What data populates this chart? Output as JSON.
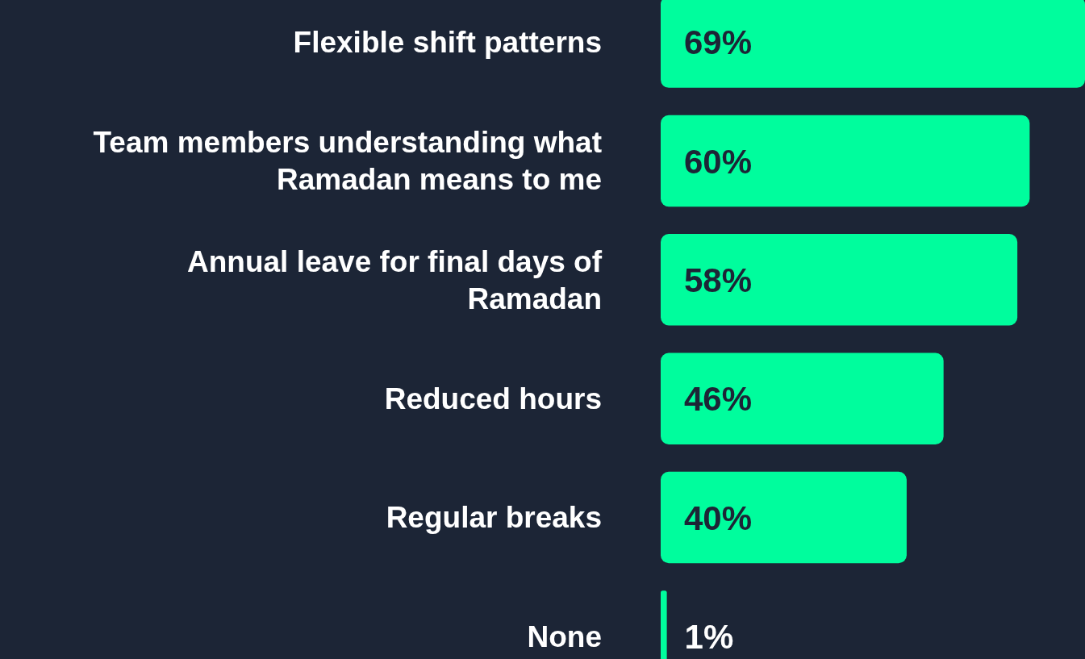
{
  "chart_data": {
    "type": "bar",
    "orientation": "horizontal",
    "categories": [
      "Flexible shift patterns",
      "Team members understanding what Ramadan means to me",
      "Annual leave for final days of Ramadan",
      "Reduced hours",
      "Regular breaks",
      "None"
    ],
    "values": [
      69,
      60,
      58,
      46,
      40,
      1
    ],
    "value_labels": [
      "69%",
      "60%",
      "58%",
      "46%",
      "40%",
      "1%"
    ],
    "color": "#00fd9d"
  }
}
